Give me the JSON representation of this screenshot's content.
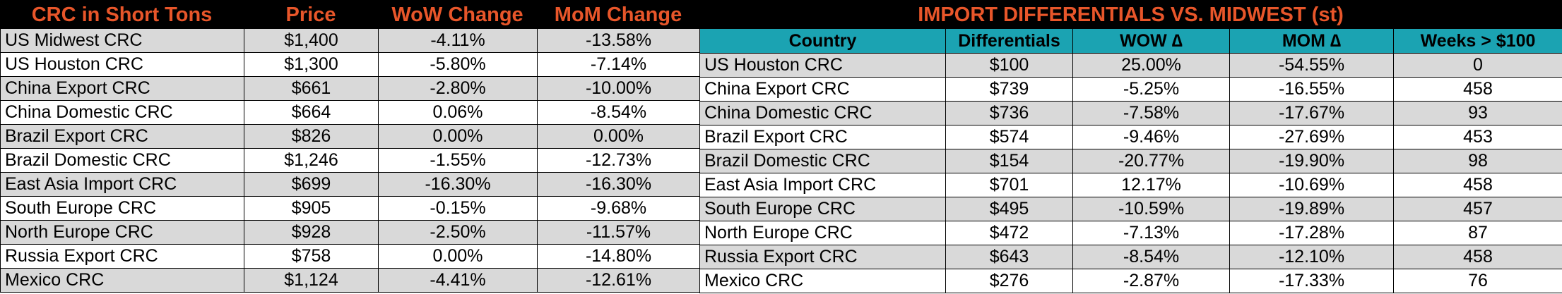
{
  "left": {
    "headers": [
      "CRC in Short Tons",
      "Price",
      "WoW Change",
      "MoM Change"
    ],
    "rows": [
      {
        "name": "US Midwest CRC",
        "price": "$1,400",
        "wow": "-4.11%",
        "mom": "-13.58%"
      },
      {
        "name": "US Houston CRC",
        "price": "$1,300",
        "wow": "-5.80%",
        "mom": "-7.14%"
      },
      {
        "name": "China Export CRC",
        "price": "$661",
        "wow": "-2.80%",
        "mom": "-10.00%"
      },
      {
        "name": "China Domestic CRC",
        "price": "$664",
        "wow": "0.06%",
        "mom": "-8.54%"
      },
      {
        "name": "Brazil Export CRC",
        "price": "$826",
        "wow": "0.00%",
        "mom": "0.00%"
      },
      {
        "name": "Brazil Domestic CRC",
        "price": "$1,246",
        "wow": "-1.55%",
        "mom": "-12.73%"
      },
      {
        "name": "East Asia Import CRC",
        "price": "$699",
        "wow": "-16.30%",
        "mom": "-16.30%"
      },
      {
        "name": "South Europe CRC",
        "price": "$905",
        "wow": "-0.15%",
        "mom": "-9.68%"
      },
      {
        "name": "North Europe CRC",
        "price": "$928",
        "wow": "-2.50%",
        "mom": "-11.57%"
      },
      {
        "name": "Russia Export CRC",
        "price": "$758",
        "wow": "0.00%",
        "mom": "-14.80%"
      },
      {
        "name": "Mexico CRC",
        "price": "$1,124",
        "wow": "-4.41%",
        "mom": "-12.61%"
      }
    ]
  },
  "right": {
    "title": "IMPORT DIFFERENTIALS VS. MIDWEST (st)",
    "headers": [
      "Country",
      "Differentials",
      "WOW ∆",
      "MOM ∆",
      "Weeks > $100"
    ],
    "rows": [
      {
        "country": "US Houston CRC",
        "diff": "$100",
        "wow": "25.00%",
        "mom": "-54.55%",
        "weeks": "0"
      },
      {
        "country": "China Export CRC",
        "diff": "$739",
        "wow": "-5.25%",
        "mom": "-16.55%",
        "weeks": "458"
      },
      {
        "country": "China Domestic CRC",
        "diff": "$736",
        "wow": "-7.58%",
        "mom": "-17.67%",
        "weeks": "93"
      },
      {
        "country": "Brazil Export CRC",
        "diff": "$574",
        "wow": "-9.46%",
        "mom": "-27.69%",
        "weeks": "453"
      },
      {
        "country": "Brazil Domestic CRC",
        "diff": "$154",
        "wow": "-20.77%",
        "mom": "-19.90%",
        "weeks": "98"
      },
      {
        "country": "East Asia Import CRC",
        "diff": "$701",
        "wow": "12.17%",
        "mom": "-10.69%",
        "weeks": "458"
      },
      {
        "country": "South Europe CRC",
        "diff": "$495",
        "wow": "-10.59%",
        "mom": "-19.89%",
        "weeks": "457"
      },
      {
        "country": "North Europe CRC",
        "diff": "$472",
        "wow": "-7.13%",
        "mom": "-17.28%",
        "weeks": "87"
      },
      {
        "country": "Russia Export CRC",
        "diff": "$643",
        "wow": "-8.54%",
        "mom": "-12.10%",
        "weeks": "458"
      },
      {
        "country": "Mexico CRC",
        "diff": "$276",
        "wow": "-2.87%",
        "mom": "-17.33%",
        "weeks": "76"
      }
    ]
  },
  "colors": {
    "header_text": "#e8562a",
    "teal_header": "#1ba3b2",
    "shade": "#d9d9d9",
    "bar": "#000000"
  }
}
